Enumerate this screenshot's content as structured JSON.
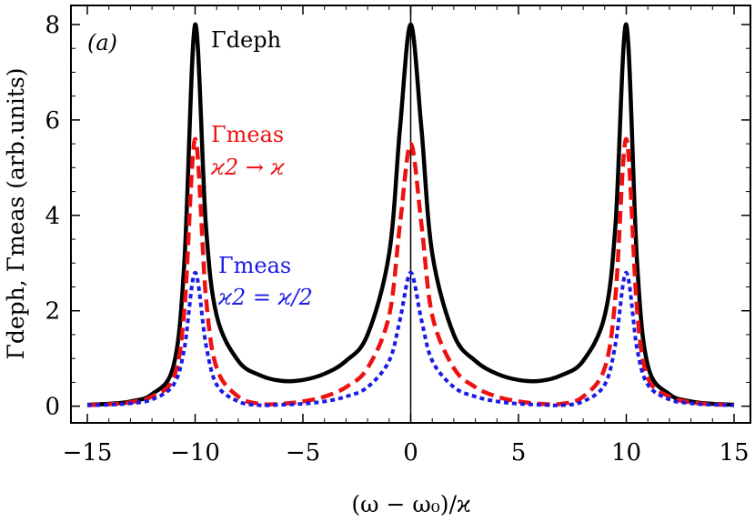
{
  "chart_data": {
    "type": "line",
    "panel_label": "(a)",
    "xlabel": "(ω − ω₀)/ϰ",
    "ylabel": "Γdeph, Γmeas (arb.units)",
    "xlim": [
      -15,
      15
    ],
    "ylim": [
      -0.35,
      8.4
    ],
    "xticks": [
      -15,
      -10,
      -5,
      0,
      5,
      10,
      15
    ],
    "yticks": [
      0,
      2,
      4,
      6,
      8
    ],
    "grid": false,
    "vertical_line_x": 0,
    "series": [
      {
        "name": "Γdeph",
        "color": "#000000",
        "style": "solid",
        "peaks": [
          -10,
          0,
          10
        ],
        "peak_values": [
          8.0,
          8.0,
          8.0
        ],
        "x": [
          -15,
          -14,
          -13,
          -12,
          -11,
          -10.5,
          -10,
          -9.5,
          -9,
          -8,
          -7,
          -6,
          -5,
          -4,
          -3,
          -2,
          -1,
          -0.5,
          0,
          0.5,
          1,
          2,
          3,
          4,
          5,
          6,
          7,
          8,
          9,
          9.5,
          10,
          10.5,
          11,
          12,
          13,
          14,
          15
        ],
        "y": [
          0.03,
          0.05,
          0.1,
          0.25,
          0.85,
          3.0,
          8.0,
          3.8,
          1.9,
          0.95,
          0.65,
          0.53,
          0.55,
          0.68,
          0.95,
          1.5,
          3.2,
          5.8,
          8.0,
          5.8,
          3.2,
          1.5,
          0.95,
          0.68,
          0.55,
          0.53,
          0.65,
          0.95,
          1.9,
          3.8,
          8.0,
          3.0,
          0.85,
          0.25,
          0.1,
          0.05,
          0.03
        ],
        "annotation": "Γdeph"
      },
      {
        "name": "Γmeas, ϰ2 → ϰ",
        "color": "#ee1111",
        "style": "dashed",
        "peak_values": [
          5.6,
          5.5,
          5.6
        ],
        "x": [
          -15,
          -14,
          -13,
          -12,
          -11,
          -10.5,
          -10,
          -9.5,
          -9,
          -8,
          -7,
          -6,
          -5,
          -4,
          -3,
          -2,
          -1,
          -0.5,
          0,
          0.5,
          1,
          2,
          3,
          4,
          5,
          6,
          7,
          8,
          9,
          9.5,
          10,
          10.5,
          11,
          12,
          13,
          14,
          15
        ],
        "y": [
          0.02,
          0.04,
          0.08,
          0.2,
          0.6,
          2.0,
          5.6,
          2.3,
          0.8,
          0.2,
          0.05,
          0.05,
          0.1,
          0.2,
          0.4,
          0.8,
          1.9,
          3.8,
          5.5,
          3.8,
          1.9,
          0.8,
          0.4,
          0.2,
          0.1,
          0.05,
          0.05,
          0.2,
          0.8,
          2.3,
          5.6,
          2.0,
          0.6,
          0.2,
          0.08,
          0.04,
          0.02
        ],
        "annotation_lines": [
          "Γmeas",
          "ϰ2 → ϰ"
        ]
      },
      {
        "name": "Γmeas, ϰ2 = ϰ/2",
        "color": "#1a1ae6",
        "style": "dotted",
        "peak_values": [
          2.8,
          2.8,
          2.8
        ],
        "x": [
          -15,
          -14,
          -13,
          -12,
          -11,
          -10.5,
          -10,
          -9.5,
          -9,
          -8,
          -7,
          -6,
          -5,
          -4,
          -3,
          -2,
          -1,
          -0.5,
          0,
          0.5,
          1,
          2,
          3,
          4,
          5,
          6,
          7,
          8,
          9,
          9.5,
          10,
          10.5,
          11,
          12,
          13,
          14,
          15
        ],
        "y": [
          0.02,
          0.03,
          0.06,
          0.14,
          0.45,
          1.2,
          2.8,
          1.3,
          0.45,
          0.1,
          0.02,
          0.03,
          0.05,
          0.1,
          0.2,
          0.4,
          0.95,
          1.8,
          2.8,
          1.8,
          0.95,
          0.4,
          0.2,
          0.1,
          0.05,
          0.03,
          0.02,
          0.1,
          0.45,
          1.3,
          2.8,
          1.2,
          0.45,
          0.14,
          0.06,
          0.03,
          0.02
        ],
        "annotation_lines": [
          "Γmeas",
          "ϰ2 = ϰ/2"
        ]
      }
    ]
  }
}
